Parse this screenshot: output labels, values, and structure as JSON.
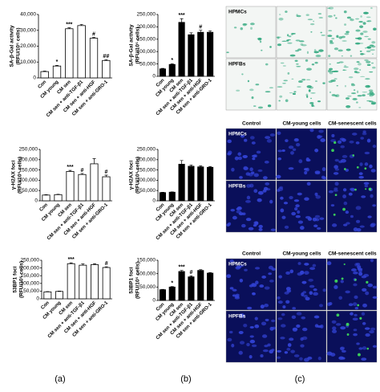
{
  "chart_data": [
    {
      "type": "bar",
      "ylabel": [
        "SA-β-Gal activity",
        "(RFU/10⁵ cells)"
      ],
      "color": "#ffffff",
      "edgecolor": "#000000",
      "categories": [
        "Con",
        "CM young",
        "CM sen",
        "CM sen + anti-TGF-β1",
        "CM sen + anti-HGF",
        "CM sen + anti-GRO-1"
      ],
      "values": [
        4000,
        7500,
        31000,
        33000,
        25000,
        11000
      ],
      "errors": [
        300,
        400,
        600,
        700,
        600,
        500
      ],
      "annotations": [
        null,
        "*",
        "***",
        null,
        "#",
        "##"
      ],
      "ylim": [
        0,
        40000
      ],
      "yticks": [
        0,
        {
          "value": 10000,
          "label": "10,000"
        },
        {
          "value": 20000,
          "label": "20,000"
        },
        {
          "value": 30000,
          "label": "30,000"
        },
        {
          "value": 40000,
          "label": "40,000"
        }
      ]
    },
    {
      "type": "bar",
      "ylabel": [
        "γ-H2AX foci",
        "(RFU/10⁵ cells)"
      ],
      "color": "#ffffff",
      "edgecolor": "#000000",
      "categories": [
        "Con",
        "CM young",
        "CM sen",
        "CM sen + anti-TGF-β1",
        "CM sen + anti-HGF",
        "CM sen + anti-GRO-1"
      ],
      "values": [
        28000,
        30000,
        143000,
        128000,
        180000,
        117000
      ],
      "errors": [
        2000,
        2000,
        5000,
        5000,
        25000,
        8000
      ],
      "annotations": [
        null,
        null,
        "***",
        "#",
        null,
        "#"
      ],
      "ylim": [
        0,
        250000
      ],
      "yticks": [
        0,
        {
          "value": 50000,
          "label": "50,000"
        },
        {
          "value": 100000,
          "label": "100,000"
        },
        {
          "value": 150000,
          "label": "150,000"
        },
        {
          "value": 200000,
          "label": "200,000"
        },
        {
          "value": 250000,
          "label": "250,000"
        }
      ]
    },
    {
      "type": "bar",
      "ylabel": [
        "53BP1 foci",
        "(RFU/10⁵ cells)"
      ],
      "color": "#ffffff",
      "edgecolor": "#000000",
      "categories": [
        "Con",
        "CM young",
        "CM sen",
        "CM sen + anti-TGF-β1",
        "CM sen + anti-HGF",
        "CM sen + anti-GRO-1"
      ],
      "values": [
        45000,
        48000,
        228000,
        218000,
        222000,
        203000
      ],
      "errors": [
        2000,
        2000,
        5000,
        8000,
        6000,
        5000
      ],
      "annotations": [
        null,
        null,
        "***",
        null,
        null,
        "#"
      ],
      "ylim": [
        0,
        250000
      ],
      "yticks": [
        0,
        {
          "value": 50000,
          "label": "50,000"
        },
        {
          "value": 100000,
          "label": "100,000"
        },
        {
          "value": 150000,
          "label": "150,000"
        },
        {
          "value": 200000,
          "label": "200,000"
        },
        {
          "value": 250000,
          "label": "250,000"
        }
      ]
    },
    {
      "type": "bar",
      "ylabel": [
        "SA-β-Gal activity",
        "(RFU/10⁵ cells)"
      ],
      "color": "#000000",
      "edgecolor": "#000000",
      "categories": [
        "Con",
        "CM young",
        "CM sen",
        "CM sen + anti-TGF-β1",
        "CM sen + anti-HGF",
        "CM sen + anti-GRO-1"
      ],
      "values": [
        30000,
        48000,
        218000,
        168000,
        178000,
        178000
      ],
      "errors": [
        2000,
        3000,
        15000,
        8000,
        8000,
        6000
      ],
      "annotations": [
        null,
        "*",
        "***",
        null,
        "#",
        null
      ],
      "ylim": [
        0,
        250000
      ],
      "yticks": [
        0,
        {
          "value": 50000,
          "label": "50,000"
        },
        {
          "value": 100000,
          "label": "100,000"
        },
        {
          "value": 150000,
          "label": "150,000"
        },
        {
          "value": 200000,
          "label": "200,000"
        },
        {
          "value": 250000,
          "label": "250,000"
        }
      ]
    },
    {
      "type": "bar",
      "ylabel": [
        "γ-H2AX foci",
        "(RFU/10⁵ cells)"
      ],
      "color": "#000000",
      "edgecolor": "#000000",
      "categories": [
        "Con",
        "CM young",
        "CM sen",
        "CM sen + anti-TGF-β1",
        "CM sen + anti-HGF",
        "CM sen + anti-GRO-1"
      ],
      "values": [
        40000,
        42000,
        178000,
        168000,
        165000,
        163000
      ],
      "errors": [
        1500,
        1500,
        18000,
        6000,
        5000,
        4000
      ],
      "annotations": [
        null,
        null,
        null,
        null,
        null,
        null
      ],
      "ylim": [
        0,
        250000
      ],
      "yticks": [
        0,
        {
          "value": 50000,
          "label": "50,000"
        },
        {
          "value": 100000,
          "label": "100,000"
        },
        {
          "value": 150000,
          "label": "150,000"
        },
        {
          "value": 200000,
          "label": "200,000"
        },
        {
          "value": 250000,
          "label": "250,000"
        }
      ]
    },
    {
      "type": "bar",
      "ylabel": [
        "53BP1 foci",
        "(RFU/10⁵ cells)"
      ],
      "color": "#000000",
      "edgecolor": "#000000",
      "categories": [
        "Con",
        "CM young",
        "CM sen",
        "CM sen + anti-TGF-β1",
        "CM sen + anti-HGF",
        "CM sen + anti-GRO-1"
      ],
      "values": [
        40000,
        50000,
        108000,
        88000,
        112000,
        102000
      ],
      "errors": [
        1500,
        2000,
        4000,
        4000,
        3000,
        2000
      ],
      "annotations": [
        null,
        "*",
        "***",
        "#",
        null,
        null
      ],
      "ylim": [
        0,
        150000
      ],
      "yticks": [
        0,
        {
          "value": 50000,
          "label": "50,000"
        },
        {
          "value": 100000,
          "label": "100,000"
        },
        {
          "value": 150000,
          "label": "150,000"
        }
      ]
    }
  ],
  "panel_labels": [
    "(a)",
    "(b)",
    "(c)"
  ],
  "image_groups": [
    {
      "columns": null,
      "rows": [
        "HPMCs",
        "HPFBs"
      ]
    },
    {
      "columns": [
        "Control",
        "CM-young cells",
        "CM-senescent cells"
      ],
      "rows": [
        "HPMCs",
        "HPFBs"
      ]
    },
    {
      "columns": [
        "Control",
        "CM-young cells",
        "CM-senescent cells"
      ],
      "rows": [
        "HPMCs",
        "HPFBs"
      ]
    }
  ]
}
